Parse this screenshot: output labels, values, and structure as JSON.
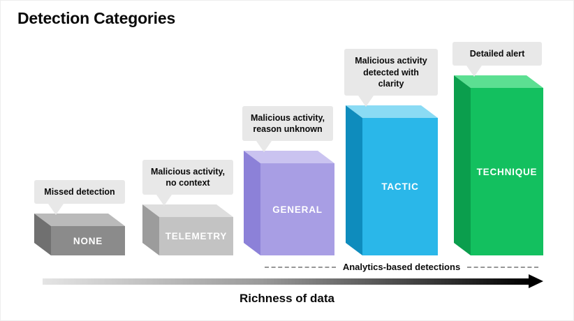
{
  "title": "Detection Categories",
  "bubble_color": "#e8e8e8",
  "categories": [
    {
      "label": "NONE",
      "bubble": "Missed detection",
      "colors": {
        "top": "#bababa",
        "side": "#707070",
        "front": "#8b8b8b"
      }
    },
    {
      "label": "TELEMETRY",
      "bubble": "Malicious activity, no context",
      "colors": {
        "top": "#dedede",
        "side": "#9c9c9c",
        "front": "#c3c3c3"
      }
    },
    {
      "label": "GENERAL",
      "bubble": "Malicious activity, reason unknown",
      "colors": {
        "top": "#cac3f0",
        "side": "#8c81d8",
        "front": "#a89ee4"
      }
    },
    {
      "label": "TACTIC",
      "bubble": "Malicious activity detected with clarity",
      "colors": {
        "top": "#8adbf4",
        "side": "#0e8cbd",
        "front": "#2ab7e9"
      }
    },
    {
      "label": "TECHNIQUE",
      "bubble": "Detailed alert",
      "colors": {
        "top": "#5cdf92",
        "side": "#0b9e4d",
        "front": "#13c05f"
      }
    }
  ],
  "annotations": {
    "analytics_label": "Analytics-based detections"
  },
  "axis": {
    "label": "Richness of data"
  }
}
